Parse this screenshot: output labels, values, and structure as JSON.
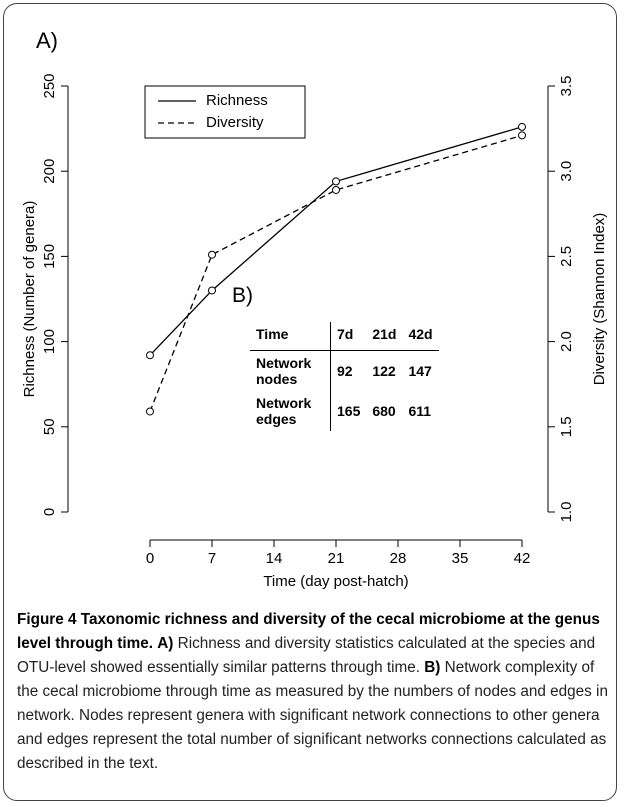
{
  "chart_data": {
    "type": "line",
    "panel_label": "A)",
    "x": [
      0,
      7,
      21,
      42
    ],
    "series": [
      {
        "name": "Richness",
        "color": "#000000",
        "linestyle": "solid",
        "marker": "open-circle",
        "values": [
          92,
          130,
          194,
          226
        ]
      },
      {
        "name": "Diversity",
        "color": "#000000",
        "linestyle": "dashed",
        "marker": "open-circle",
        "axis": "y2",
        "values": [
          1.59,
          2.51,
          2.89,
          3.21
        ]
      }
    ],
    "xlabel": "Time (day post-hatch)",
    "ylabel": "Richness (Number of genera)",
    "y2label": "Diversity (Shannon Index)",
    "xlim": [
      0,
      42
    ],
    "xticks": [
      0,
      7,
      14,
      21,
      28,
      35,
      42
    ],
    "ylim": [
      0,
      250
    ],
    "yticks": [
      0,
      50,
      100,
      150,
      200,
      250
    ],
    "y2lim": [
      1.0,
      3.5
    ],
    "y2ticks": [
      {
        "value": 1.0,
        "label": "1.0"
      },
      1.5,
      {
        "value": 2.0,
        "label": "2.0"
      },
      2.5,
      {
        "value": 3.0,
        "label": "3.0"
      },
      3.5
    ],
    "legend": "upper left",
    "grid": false
  },
  "inset_table": {
    "label": "B)",
    "header": [
      "Time",
      "7d",
      "21d",
      "42d"
    ],
    "rows": [
      [
        "Network nodes",
        "92",
        "122",
        "147"
      ],
      [
        "Network edges",
        "165",
        "680",
        "611"
      ]
    ]
  },
  "caption": {
    "label": "Figure 4",
    "title": "Taxonomic richness and diversity of the cecal microbiome at the genus level through time.",
    "parts": [
      {
        "label": "A)",
        "text": "Richness and diversity statistics calculated at the species and OTU-level showed essentially similar patterns through time."
      },
      {
        "label": "B)",
        "text": "Network complexity of the cecal microbiome through time as measured by the numbers of nodes and edges in network. Nodes represent genera with significant network connections to other genera and edges represent the total number of significant networks connections calculated as described in the text."
      }
    ]
  }
}
